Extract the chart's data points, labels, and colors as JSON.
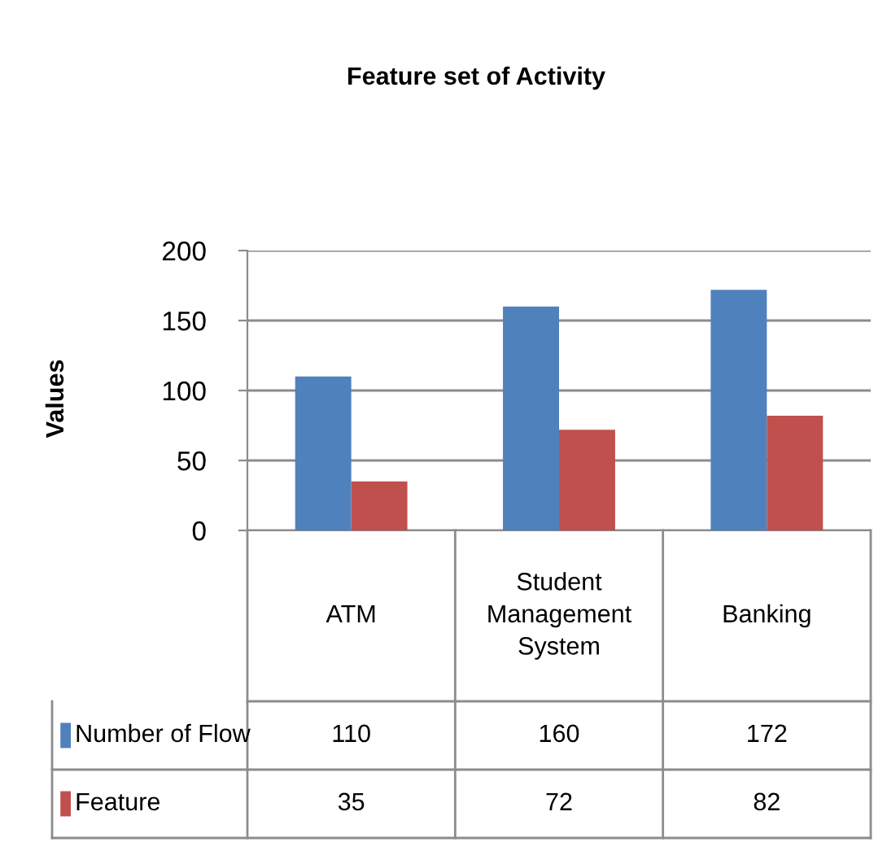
{
  "chart_data": {
    "type": "bar",
    "title": "Feature set of Activity",
    "ylabel": "Values",
    "categories": [
      "ATM",
      "Student Management System",
      "Banking"
    ],
    "series": [
      {
        "name": "Number of Flow",
        "color": "#4f81bd",
        "values": [
          110,
          160,
          172
        ]
      },
      {
        "name": "Feature",
        "color": "#c0504d",
        "values": [
          35,
          72,
          82
        ]
      }
    ],
    "ylim": [
      0,
      200
    ],
    "yticks": [
      0,
      50,
      100,
      150,
      200
    ],
    "grid": "y",
    "legend": "bottom",
    "data_labels": true
  }
}
